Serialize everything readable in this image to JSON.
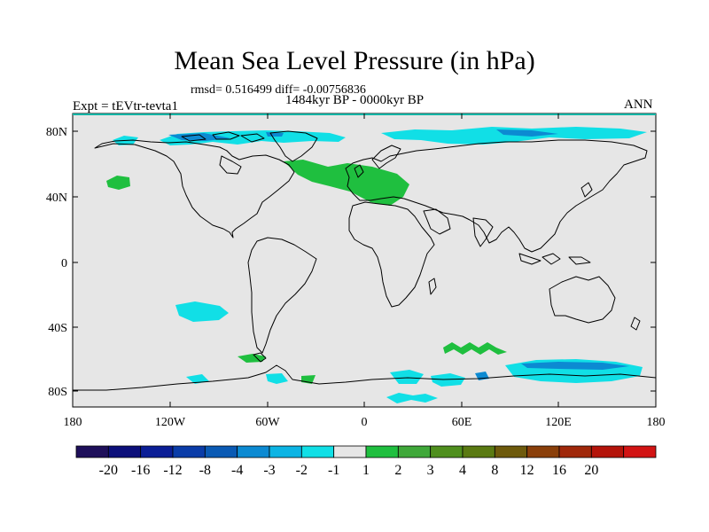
{
  "title": "Mean Sea Level Pressure (in hPa)",
  "stats": "rmsd= 0.516499 diff= -0.00756836",
  "period": "1484kyr BP - 0000kyr BP",
  "experiment": "Expt = tEVtr-tevta1",
  "season": "ANN",
  "axes": {
    "lat_ticks": [
      "80N",
      "40N",
      "0",
      "40S",
      "80S"
    ],
    "lon_ticks": [
      "180",
      "120W",
      "60W",
      "0",
      "60E",
      "120E",
      "180"
    ]
  },
  "colorbar": {
    "colors": [
      "#1e0f5a",
      "#0c0f7a",
      "#0b1e96",
      "#0a3ca8",
      "#0a5ab4",
      "#0c8ad2",
      "#0cb4e4",
      "#11dfe6",
      "#e6e6e6",
      "#1fbf3f",
      "#3fa83a",
      "#4f8f1e",
      "#5a7a12",
      "#6e5a0c",
      "#8a3f0a",
      "#a0280a",
      "#b4140a",
      "#d21414"
    ],
    "labels": [
      "-20",
      "-16",
      "-12",
      "-8",
      "-4",
      "-3",
      "-2",
      "-1",
      "1",
      "2",
      "3",
      "4",
      "8",
      "12",
      "16",
      "20"
    ]
  },
  "colors": {
    "background": "#e6e6e6",
    "cyan": "#11dfe6",
    "blue": "#0c8ad2",
    "green": "#1fbf3f",
    "coast": "#000000"
  }
}
